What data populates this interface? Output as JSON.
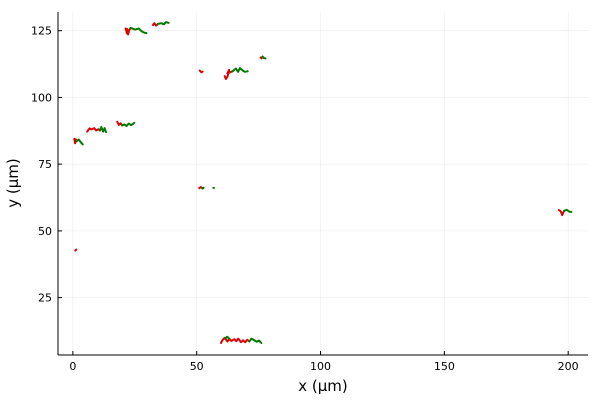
{
  "chart_data": {
    "type": "line",
    "title": "",
    "xlabel": "x (µm)",
    "ylabel": "y (µm)",
    "xlim": [
      -6,
      208
    ],
    "ylim": [
      3.5,
      132
    ],
    "xticks": [
      0,
      50,
      100,
      150,
      200
    ],
    "yticks": [
      25,
      50,
      75,
      100,
      125
    ],
    "grid": true,
    "legend": "none",
    "colors": {
      "track_a": "#e00000",
      "track_b": "#007a00"
    },
    "series": [
      {
        "color": "track_a",
        "x": [
          21.3,
          21.6,
          22.0,
          21.7,
          22.3,
          22.8,
          23.3
        ],
        "y": [
          125.8,
          124.8,
          125.6,
          124.2,
          123.6,
          125.3,
          126.0
        ]
      },
      {
        "color": "track_b",
        "x": [
          23.3,
          25.2,
          26.6,
          27.7,
          28.8,
          29.7
        ],
        "y": [
          126.0,
          125.4,
          125.8,
          124.8,
          124.3,
          124.1
        ]
      },
      {
        "color": "track_a",
        "x": [
          32.3,
          32.9,
          33.6,
          34.3
        ],
        "y": [
          127.1,
          127.8,
          126.9,
          127.5
        ]
      },
      {
        "color": "track_b",
        "x": [
          34.3,
          35.6,
          36.8,
          37.6,
          38.7
        ],
        "y": [
          127.5,
          127.8,
          127.4,
          128.2,
          127.9
        ]
      },
      {
        "color": "track_a",
        "x": [
          51.2,
          51.9,
          52.4
        ],
        "y": [
          110.1,
          109.4,
          109.7
        ]
      },
      {
        "color": "track_a",
        "x": [
          61.3,
          61.8,
          62.5,
          63.1,
          62.4,
          63.6,
          64.5
        ],
        "y": [
          108.0,
          106.9,
          107.9,
          110.3,
          109.0,
          109.5,
          109.8
        ]
      },
      {
        "color": "track_b",
        "x": [
          64.5,
          65.8,
          66.7,
          67.5,
          68.6,
          69.4,
          70.6
        ],
        "y": [
          109.8,
          110.8,
          109.6,
          111.0,
          110.1,
          109.6,
          109.8
        ]
      },
      {
        "color": "track_a",
        "x": [
          75.8,
          76.2,
          76.6
        ],
        "y": [
          115.0,
          114.6,
          115.3
        ]
      },
      {
        "color": "track_b",
        "x": [
          76.6,
          77.2,
          77.8
        ],
        "y": [
          115.3,
          114.7,
          114.6
        ]
      },
      {
        "color": "track_a",
        "x": [
          0.6,
          0.9,
          1.2,
          1.5
        ],
        "y": [
          84.5,
          82.8,
          84.3,
          83.6
        ]
      },
      {
        "color": "track_b",
        "x": [
          1.5,
          2.4,
          3.3,
          4.0
        ],
        "y": [
          83.6,
          84.2,
          83.1,
          82.4
        ]
      },
      {
        "color": "track_a",
        "x": [
          5.8,
          6.7,
          7.6,
          8.6,
          9.4,
          10.3,
          10.9
        ],
        "y": [
          87.2,
          88.4,
          88.0,
          88.5,
          87.6,
          88.1,
          87.6
        ]
      },
      {
        "color": "track_b",
        "x": [
          10.9,
          11.5,
          12.2,
          12.8,
          13.4
        ],
        "y": [
          87.6,
          88.9,
          87.2,
          88.5,
          87.0
        ]
      },
      {
        "color": "track_a",
        "x": [
          17.9,
          18.6,
          19.3,
          19.9
        ],
        "y": [
          90.9,
          89.7,
          90.3,
          89.5
        ]
      },
      {
        "color": "track_b",
        "x": [
          19.9,
          20.8,
          21.6,
          22.6,
          23.5,
          24.8
        ],
        "y": [
          89.5,
          89.9,
          89.3,
          90.2,
          89.6,
          90.5
        ]
      },
      {
        "color": "track_a",
        "x": [
          51.0,
          51.6,
          52.3
        ],
        "y": [
          66.0,
          66.4,
          65.9
        ]
      },
      {
        "color": "track_b",
        "x": [
          52.3,
          52.8
        ],
        "y": [
          65.9,
          66.1
        ]
      },
      {
        "color": "track_b",
        "x": [
          56.7,
          57.0
        ],
        "y": [
          66.1,
          66.1
        ]
      },
      {
        "color": "track_a",
        "x": [
          1.0,
          1.4
        ],
        "y": [
          42.6,
          43.0
        ]
      },
      {
        "color": "track_a",
        "x": [
          196.3,
          197.0,
          197.6,
          198.3
        ],
        "y": [
          57.8,
          57.3,
          55.9,
          57.5
        ]
      },
      {
        "color": "track_b",
        "x": [
          198.3,
          199.4,
          200.5,
          201.3
        ],
        "y": [
          57.5,
          57.9,
          57.2,
          57.1
        ]
      },
      {
        "color": "track_a",
        "x": [
          59.8,
          60.5,
          61.3,
          62.4,
          63.2,
          64.0,
          65.2,
          66.0,
          66.8,
          67.9,
          68.7,
          69.6,
          70.4,
          71.3
        ],
        "y": [
          8.0,
          9.2,
          9.9,
          8.6,
          9.5,
          8.8,
          9.4,
          8.7,
          9.6,
          8.3,
          9.0,
          8.3,
          9.2,
          8.6
        ]
      },
      {
        "color": "track_b",
        "x": [
          71.3,
          72.1,
          73.0,
          74.2,
          75.2,
          76.1
        ],
        "y": [
          8.6,
          9.6,
          9.2,
          8.5,
          8.9,
          8.0
        ]
      },
      {
        "color": "track_b",
        "x": [
          61.5,
          62.3,
          63.1
        ],
        "y": [
          9.8,
          10.3,
          9.7
        ]
      }
    ]
  }
}
